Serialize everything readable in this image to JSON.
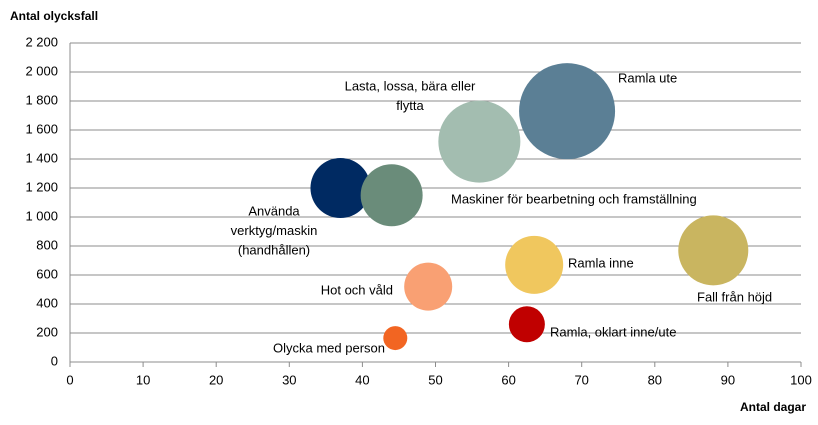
{
  "chart_data": {
    "type": "bubble",
    "y_label": "Antal olycksfall",
    "x_label": "Antal dagar",
    "xlim": [
      0,
      100
    ],
    "xticks": [
      0,
      10,
      20,
      30,
      40,
      50,
      60,
      70,
      80,
      90,
      100
    ],
    "ylim": [
      0,
      2200
    ],
    "yticks": [
      0,
      200,
      400,
      600,
      800,
      {
        "value": 1000,
        "label": "1 000"
      },
      {
        "value": 1200,
        "label": "1 200"
      },
      {
        "value": 1400,
        "label": "1 400"
      },
      {
        "value": 1600,
        "label": "1 600"
      },
      {
        "value": 1800,
        "label": "1 800"
      },
      {
        "value": 2000,
        "label": "2 000"
      },
      {
        "value": 2200,
        "label": "2 200"
      }
    ],
    "grid": true,
    "series": [
      {
        "name": [
          "Ramla ute"
        ],
        "color": "#5b7f95",
        "x": [
          68
        ],
        "values": [
          1730
        ],
        "sizes": [
          2304
        ]
      },
      {
        "name": [
          "Lasta, lossa, bära eller",
          "flytta"
        ],
        "color": "#a3bdb0",
        "x": [
          56
        ],
        "values": [
          1520
        ],
        "sizes": [
          1681
        ]
      },
      {
        "name": [
          "Använda",
          "verktyg/maskin",
          "(handhållen)"
        ],
        "color": "#002a62",
        "x": [
          37
        ],
        "values": [
          1200
        ],
        "sizes": [
          900
        ]
      },
      {
        "name": [
          "Maskiner för bearbetning och framställning"
        ],
        "color": "#6a8c7a",
        "x": [
          44
        ],
        "values": [
          1150
        ],
        "sizes": [
          961
        ]
      },
      {
        "name": [
          "Ramla inne"
        ],
        "color": "#f0c75e",
        "x": [
          63.5
        ],
        "values": [
          670
        ],
        "sizes": [
          841
        ]
      },
      {
        "name": [
          "Fall från höjd"
        ],
        "color": "#c9b560",
        "x": [
          88
        ],
        "values": [
          770
        ],
        "sizes": [
          1225
        ]
      },
      {
        "name": [
          "Hot och våld"
        ],
        "color": "#f9a073",
        "x": [
          49
        ],
        "values": [
          520
        ],
        "sizes": [
          576
        ]
      },
      {
        "name": [
          "Ramla, oklart inne/ute"
        ],
        "color": "#c00000",
        "x": [
          62.5
        ],
        "values": [
          260
        ],
        "sizes": [
          324
        ]
      },
      {
        "name": [
          "Olycka med person"
        ],
        "color": "#f26522",
        "x": [
          44.5
        ],
        "values": [
          165
        ],
        "sizes": [
          144
        ]
      }
    ]
  }
}
